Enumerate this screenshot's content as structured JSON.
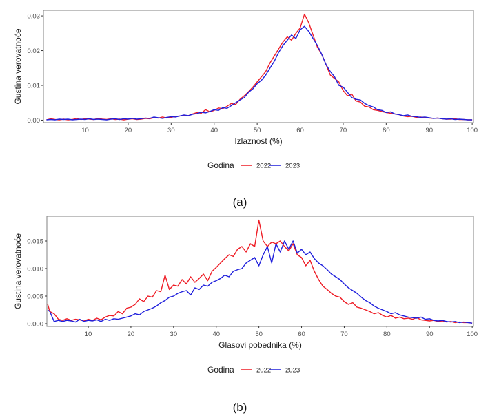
{
  "chart_data": [
    {
      "id": "a",
      "type": "line",
      "caption": "(a)",
      "title": "",
      "xlabel": "Izlaznost (%)",
      "ylabel": "Gustina verovatnoće",
      "xlim": [
        0.3,
        100.3
      ],
      "ylim": [
        -0.0007,
        0.0316
      ],
      "xticks": [
        10,
        20,
        30,
        40,
        50,
        60,
        70,
        80,
        90,
        100
      ],
      "xtick_labels": [
        "10",
        "20",
        "30",
        "40",
        "50",
        "60",
        "70",
        "80",
        "90",
        "100"
      ],
      "yticks": [
        0.0,
        0.01,
        0.02,
        0.03
      ],
      "ytick_labels": [
        "0.00",
        "0.01",
        "0.02",
        "0.03"
      ],
      "grid": false,
      "legend": {
        "title": "Godina",
        "position": "bottom"
      },
      "x": [
        1,
        2,
        3,
        4,
        5,
        6,
        7,
        8,
        9,
        10,
        11,
        12,
        13,
        14,
        15,
        16,
        17,
        18,
        19,
        20,
        21,
        22,
        23,
        24,
        25,
        26,
        27,
        28,
        29,
        30,
        31,
        32,
        33,
        34,
        35,
        36,
        37,
        38,
        39,
        40,
        41,
        42,
        43,
        44,
        45,
        46,
        47,
        48,
        49,
        50,
        51,
        52,
        53,
        54,
        55,
        56,
        57,
        58,
        59,
        60,
        61,
        62,
        63,
        64,
        65,
        66,
        67,
        68,
        69,
        70,
        71,
        72,
        73,
        74,
        75,
        76,
        77,
        78,
        79,
        80,
        81,
        82,
        83,
        84,
        85,
        86,
        87,
        88,
        89,
        90,
        91,
        92,
        93,
        94,
        95,
        96,
        97,
        98,
        99,
        100
      ],
      "series": [
        {
          "name": "2022",
          "color": "#ee1c25",
          "values": [
            0.0001,
            0.0004,
            0.0002,
            0.0001,
            0.0003,
            0.0001,
            0.0002,
            0.0005,
            0.0002,
            0.0004,
            0.0003,
            0.0002,
            0.0005,
            0.0003,
            0.0002,
            0.0004,
            0.0002,
            0.0003,
            0.0001,
            0.0003,
            0.0004,
            0.0002,
            0.0003,
            0.0005,
            0.0004,
            0.0007,
            0.0006,
            0.0009,
            0.0006,
            0.0008,
            0.0011,
            0.0012,
            0.0014,
            0.0013,
            0.0018,
            0.0022,
            0.002,
            0.003,
            0.0024,
            0.0028,
            0.0035,
            0.0033,
            0.004,
            0.0048,
            0.0045,
            0.006,
            0.007,
            0.0082,
            0.0095,
            0.011,
            0.0125,
            0.014,
            0.0165,
            0.0185,
            0.0205,
            0.0225,
            0.024,
            0.023,
            0.025,
            0.0265,
            0.0305,
            0.028,
            0.0245,
            0.021,
            0.019,
            0.016,
            0.013,
            0.012,
            0.011,
            0.0085,
            0.007,
            0.0075,
            0.0055,
            0.0052,
            0.004,
            0.0038,
            0.003,
            0.0028,
            0.0025,
            0.0022,
            0.002,
            0.0018,
            0.0016,
            0.0012,
            0.001,
            0.0011,
            0.0008,
            0.0009,
            0.0007,
            0.0006,
            0.0005,
            0.0006,
            0.0004,
            0.0003,
            0.0003,
            0.0004,
            0.0002,
            0.0002,
            0.0001,
            0.0001
          ]
        },
        {
          "name": "2023",
          "color": "#1f1fdc",
          "values": [
            0.0001,
            0.0002,
            0.0001,
            0.0003,
            0.0002,
            0.0003,
            0.0001,
            0.0002,
            0.0003,
            0.0002,
            0.0004,
            0.0002,
            0.0003,
            0.0002,
            0.0001,
            0.0003,
            0.0004,
            0.0002,
            0.0004,
            0.0003,
            0.0005,
            0.0003,
            0.0004,
            0.0006,
            0.0005,
            0.0009,
            0.0007,
            0.0005,
            0.0008,
            0.001,
            0.0009,
            0.0012,
            0.0015,
            0.0013,
            0.0017,
            0.0019,
            0.0023,
            0.0021,
            0.0025,
            0.003,
            0.0028,
            0.0036,
            0.0034,
            0.0042,
            0.005,
            0.0058,
            0.0065,
            0.008,
            0.009,
            0.0105,
            0.0115,
            0.013,
            0.015,
            0.017,
            0.0195,
            0.0215,
            0.023,
            0.0245,
            0.0235,
            0.026,
            0.027,
            0.0255,
            0.0235,
            0.0215,
            0.019,
            0.016,
            0.014,
            0.0125,
            0.01,
            0.0095,
            0.008,
            0.0065,
            0.006,
            0.0058,
            0.0048,
            0.0042,
            0.0038,
            0.003,
            0.0028,
            0.0022,
            0.0024,
            0.0018,
            0.0016,
            0.0013,
            0.0015,
            0.0011,
            0.001,
            0.0008,
            0.0009,
            0.0007,
            0.0005,
            0.0006,
            0.0004,
            0.0003,
            0.0004,
            0.0002,
            0.0003,
            0.0002,
            0.0001,
            0.0001
          ]
        }
      ]
    },
    {
      "id": "b",
      "type": "line",
      "caption": "(b)",
      "title": "",
      "xlabel": "Glasovi pobednika (%)",
      "ylabel": "Gustina verovatnoće",
      "xlim": [
        0.3,
        100.3
      ],
      "ylim": [
        -0.0005,
        0.0195
      ],
      "xticks": [
        10,
        20,
        30,
        40,
        50,
        60,
        70,
        80,
        90,
        100
      ],
      "xtick_labels": [
        "10",
        "20",
        "30",
        "40",
        "50",
        "60",
        "70",
        "80",
        "90",
        "100"
      ],
      "yticks": [
        0.0,
        0.005,
        0.01,
        0.015
      ],
      "ytick_labels": [
        "0.000",
        "0.005",
        "0.010",
        "0.015"
      ],
      "grid": false,
      "legend": {
        "title": "Godina",
        "position": "bottom"
      },
      "x": [
        0.5,
        1,
        2,
        3,
        4,
        5,
        6,
        7,
        8,
        9,
        10,
        11,
        12,
        13,
        14,
        15,
        16,
        17,
        18,
        19,
        20,
        21,
        22,
        23,
        24,
        25,
        26,
        27,
        28,
        29,
        30,
        31,
        32,
        33,
        34,
        35,
        36,
        37,
        38,
        39,
        40,
        41,
        42,
        43,
        44,
        45,
        46,
        47,
        48,
        49,
        50,
        51,
        52,
        53,
        54,
        55,
        56,
        57,
        58,
        59,
        60,
        61,
        62,
        63,
        64,
        65,
        66,
        67,
        68,
        69,
        70,
        71,
        72,
        73,
        74,
        75,
        76,
        77,
        78,
        79,
        80,
        81,
        82,
        83,
        84,
        85,
        86,
        87,
        88,
        89,
        90,
        91,
        92,
        93,
        94,
        95,
        96,
        97,
        98,
        99,
        100
      ],
      "series": [
        {
          "name": "2022",
          "color": "#ee1c25",
          "values": [
            0.0035,
            0.0022,
            0.0018,
            0.0008,
            0.0006,
            0.0009,
            0.0006,
            0.0008,
            0.0007,
            0.0005,
            0.0008,
            0.0006,
            0.001,
            0.0007,
            0.0012,
            0.0015,
            0.0014,
            0.0022,
            0.0018,
            0.0028,
            0.003,
            0.0035,
            0.0045,
            0.004,
            0.005,
            0.0048,
            0.006,
            0.0058,
            0.0088,
            0.0062,
            0.007,
            0.0068,
            0.008,
            0.0072,
            0.0085,
            0.0075,
            0.0082,
            0.009,
            0.0078,
            0.0095,
            0.0102,
            0.011,
            0.0118,
            0.0125,
            0.0122,
            0.0135,
            0.014,
            0.013,
            0.0145,
            0.014,
            0.0188,
            0.015,
            0.014,
            0.0148,
            0.0145,
            0.015,
            0.014,
            0.0132,
            0.0145,
            0.0125,
            0.012,
            0.0105,
            0.0115,
            0.0095,
            0.008,
            0.0068,
            0.0062,
            0.0055,
            0.005,
            0.0048,
            0.004,
            0.0035,
            0.0038,
            0.003,
            0.0028,
            0.0025,
            0.0022,
            0.0018,
            0.002,
            0.0015,
            0.0012,
            0.0015,
            0.001,
            0.0012,
            0.0009,
            0.001,
            0.0008,
            0.0011,
            0.0007,
            0.0006,
            0.0005,
            0.0006,
            0.0004,
            0.0005,
            0.0003,
            0.0004,
            0.0002,
            0.0003,
            0.0002,
            0.0002,
            0.0001
          ]
        },
        {
          "name": "2023",
          "color": "#1f1fdc",
          "values": [
            0.0025,
            0.0022,
            0.0004,
            0.0006,
            0.0004,
            0.0006,
            0.0005,
            0.0003,
            0.0008,
            0.0004,
            0.0006,
            0.0005,
            0.0007,
            0.0004,
            0.0008,
            0.0006,
            0.0009,
            0.0008,
            0.001,
            0.0012,
            0.0014,
            0.0018,
            0.0016,
            0.0022,
            0.0025,
            0.0028,
            0.0032,
            0.0038,
            0.0042,
            0.0048,
            0.005,
            0.0055,
            0.0058,
            0.006,
            0.0052,
            0.0065,
            0.0062,
            0.007,
            0.0068,
            0.0075,
            0.0078,
            0.0082,
            0.0088,
            0.0085,
            0.0095,
            0.0098,
            0.01,
            0.011,
            0.0115,
            0.012,
            0.0105,
            0.0125,
            0.014,
            0.011,
            0.0145,
            0.013,
            0.015,
            0.0135,
            0.015,
            0.0128,
            0.0135,
            0.0125,
            0.013,
            0.0118,
            0.011,
            0.0105,
            0.0098,
            0.009,
            0.0085,
            0.008,
            0.0072,
            0.0065,
            0.006,
            0.0055,
            0.0048,
            0.0042,
            0.0038,
            0.0032,
            0.0028,
            0.0025,
            0.0022,
            0.0018,
            0.002,
            0.0016,
            0.0014,
            0.0012,
            0.0011,
            0.001,
            0.0012,
            0.0008,
            0.0009,
            0.0006,
            0.0005,
            0.0006,
            0.0004,
            0.0003,
            0.0004,
            0.0002,
            0.0003,
            0.0002,
            0.0001
          ]
        }
      ]
    }
  ]
}
